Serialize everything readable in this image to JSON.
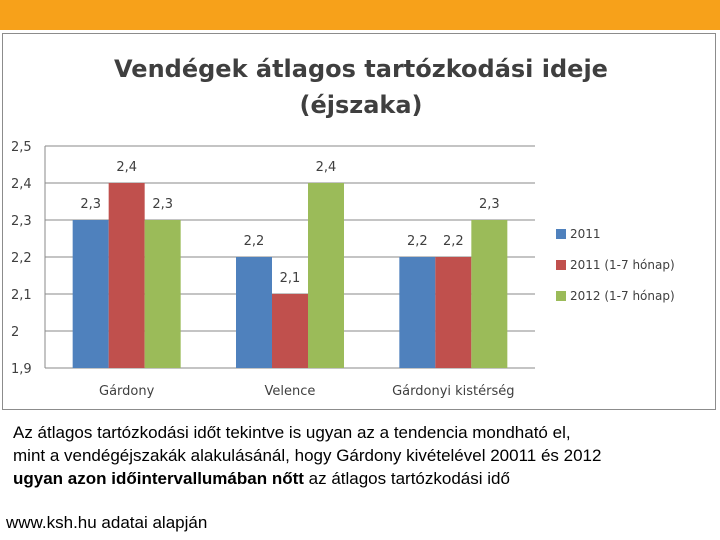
{
  "colors": {
    "top_bar": "#f7a11a",
    "series": [
      "#4f81bd",
      "#c0504d",
      "#9bbb59"
    ]
  },
  "chart_data": {
    "type": "bar",
    "title_lines": [
      "Vendégek átlagos tartózkodási ideje",
      "(éjszaka)"
    ],
    "categories": [
      "Gárdony",
      "Velence",
      "Gárdonyi kistérség"
    ],
    "series": [
      {
        "name": "2011",
        "values": [
          2.3,
          2.2,
          2.2
        ],
        "labels": [
          "2,3",
          "2,2",
          "2,2"
        ]
      },
      {
        "name": "2011 (1-7 hónap)",
        "values": [
          2.4,
          2.1,
          2.2
        ],
        "labels": [
          "2,4",
          "2,1",
          "2,2"
        ]
      },
      {
        "name": "2012 (1-7 hónap)",
        "values": [
          2.3,
          2.4,
          2.3
        ],
        "labels": [
          "2,3",
          "2,4",
          "2,3"
        ]
      }
    ],
    "ylim": [
      1.9,
      2.5
    ],
    "yticks": [
      1.9,
      2.0,
      2.1,
      2.2,
      2.3,
      2.4,
      2.5
    ],
    "ytick_labels": [
      "1,9",
      "2",
      "2,1",
      "2,2",
      "2,3",
      "2,4",
      "2,5"
    ],
    "grid": true,
    "legend_position": "right"
  },
  "caption": {
    "line1": "Az átlagos tartózkodási időt tekintve is ugyan az a tendencia mondható el,",
    "line2": "mint a vendégéjszakák alakulásánál, hogy Gárdony kivételével 20011 és 2012",
    "line3_bold": "ugyan azon időintervallumában nőtt",
    "line3_rest": " az átlagos tartózkodási idő"
  },
  "source": "www.ksh.hu adatai alapján"
}
